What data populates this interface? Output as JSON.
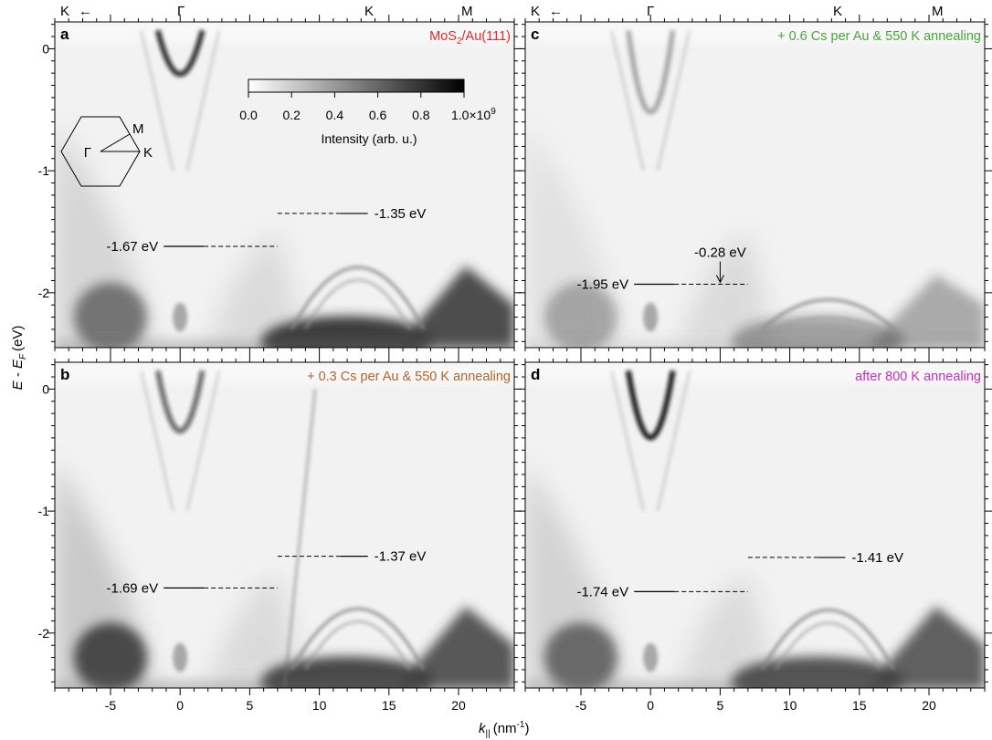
{
  "chart_data": {
    "type": "heatmap",
    "xlabel": "k",
    "xlabel_sub": "||",
    "xlabel_unit": "(nm",
    "xlabel_unit_sup": "-1",
    "xlabel_unit_close": ")",
    "ylabel": "E - E",
    "ylabel_sub": "F",
    "ylabel_unit": "(eV)",
    "xlim": [
      -9,
      24
    ],
    "ylim": [
      -2.45,
      0.22
    ],
    "x_ticks": [
      "-5",
      "0",
      "5",
      "10",
      "15",
      "20"
    ],
    "y_ticks": [
      "0",
      "-1",
      "-2"
    ],
    "symmetry_points": {
      "k_left": "K",
      "arrow": "←",
      "gamma": "Γ",
      "k": "K",
      "m": "M"
    },
    "colorbar": {
      "ticks": [
        "0.0",
        "0.2",
        "0.4",
        "0.6",
        "0.8",
        "1.0×10"
      ],
      "exponent": "9",
      "label": "Intensity (arb. u.)"
    },
    "inset": {
      "gamma": "Γ",
      "k": "K",
      "m": "M"
    },
    "panels": [
      {
        "id": "a",
        "title": "MoS",
        "title_sub": "2",
        "title_rest": "/Au(111)",
        "color": "#e8262a",
        "annotations": [
          {
            "text": "-1.35 eV",
            "x": 12.5,
            "energy": -1.35,
            "side": "right"
          },
          {
            "text": "-1.67 eV",
            "x": 0,
            "energy": -1.62,
            "side": "left"
          }
        ]
      },
      {
        "id": "b",
        "title": "+ 0.3 Cs per Au & 550 K annealing",
        "color": "#b0652a",
        "annotations": [
          {
            "text": "-1.37 eV",
            "x": 12.5,
            "energy": -1.37,
            "side": "right"
          },
          {
            "text": "-1.69 eV",
            "x": 0,
            "energy": -1.63,
            "side": "left"
          }
        ]
      },
      {
        "id": "c",
        "title": "+ 0.6 Cs per Au & 550 K annealing",
        "color": "#4aa53a",
        "annotations": [
          {
            "text": "-1.95 eV",
            "x": 0,
            "energy": -1.93,
            "side": "left"
          },
          {
            "text": "-0.28 eV",
            "x": 5,
            "energy": -1.93,
            "side": "arrow"
          }
        ]
      },
      {
        "id": "d",
        "title": "after 800 K annealing",
        "color": "#c030c0",
        "annotations": [
          {
            "text": "-1.41 eV",
            "x": 13,
            "energy": -1.38,
            "side": "right"
          },
          {
            "text": "-1.74 eV",
            "x": 0,
            "energy": -1.66,
            "side": "left"
          }
        ]
      }
    ],
    "colors": {
      "background": "#ffffff",
      "band": "#000000"
    }
  }
}
